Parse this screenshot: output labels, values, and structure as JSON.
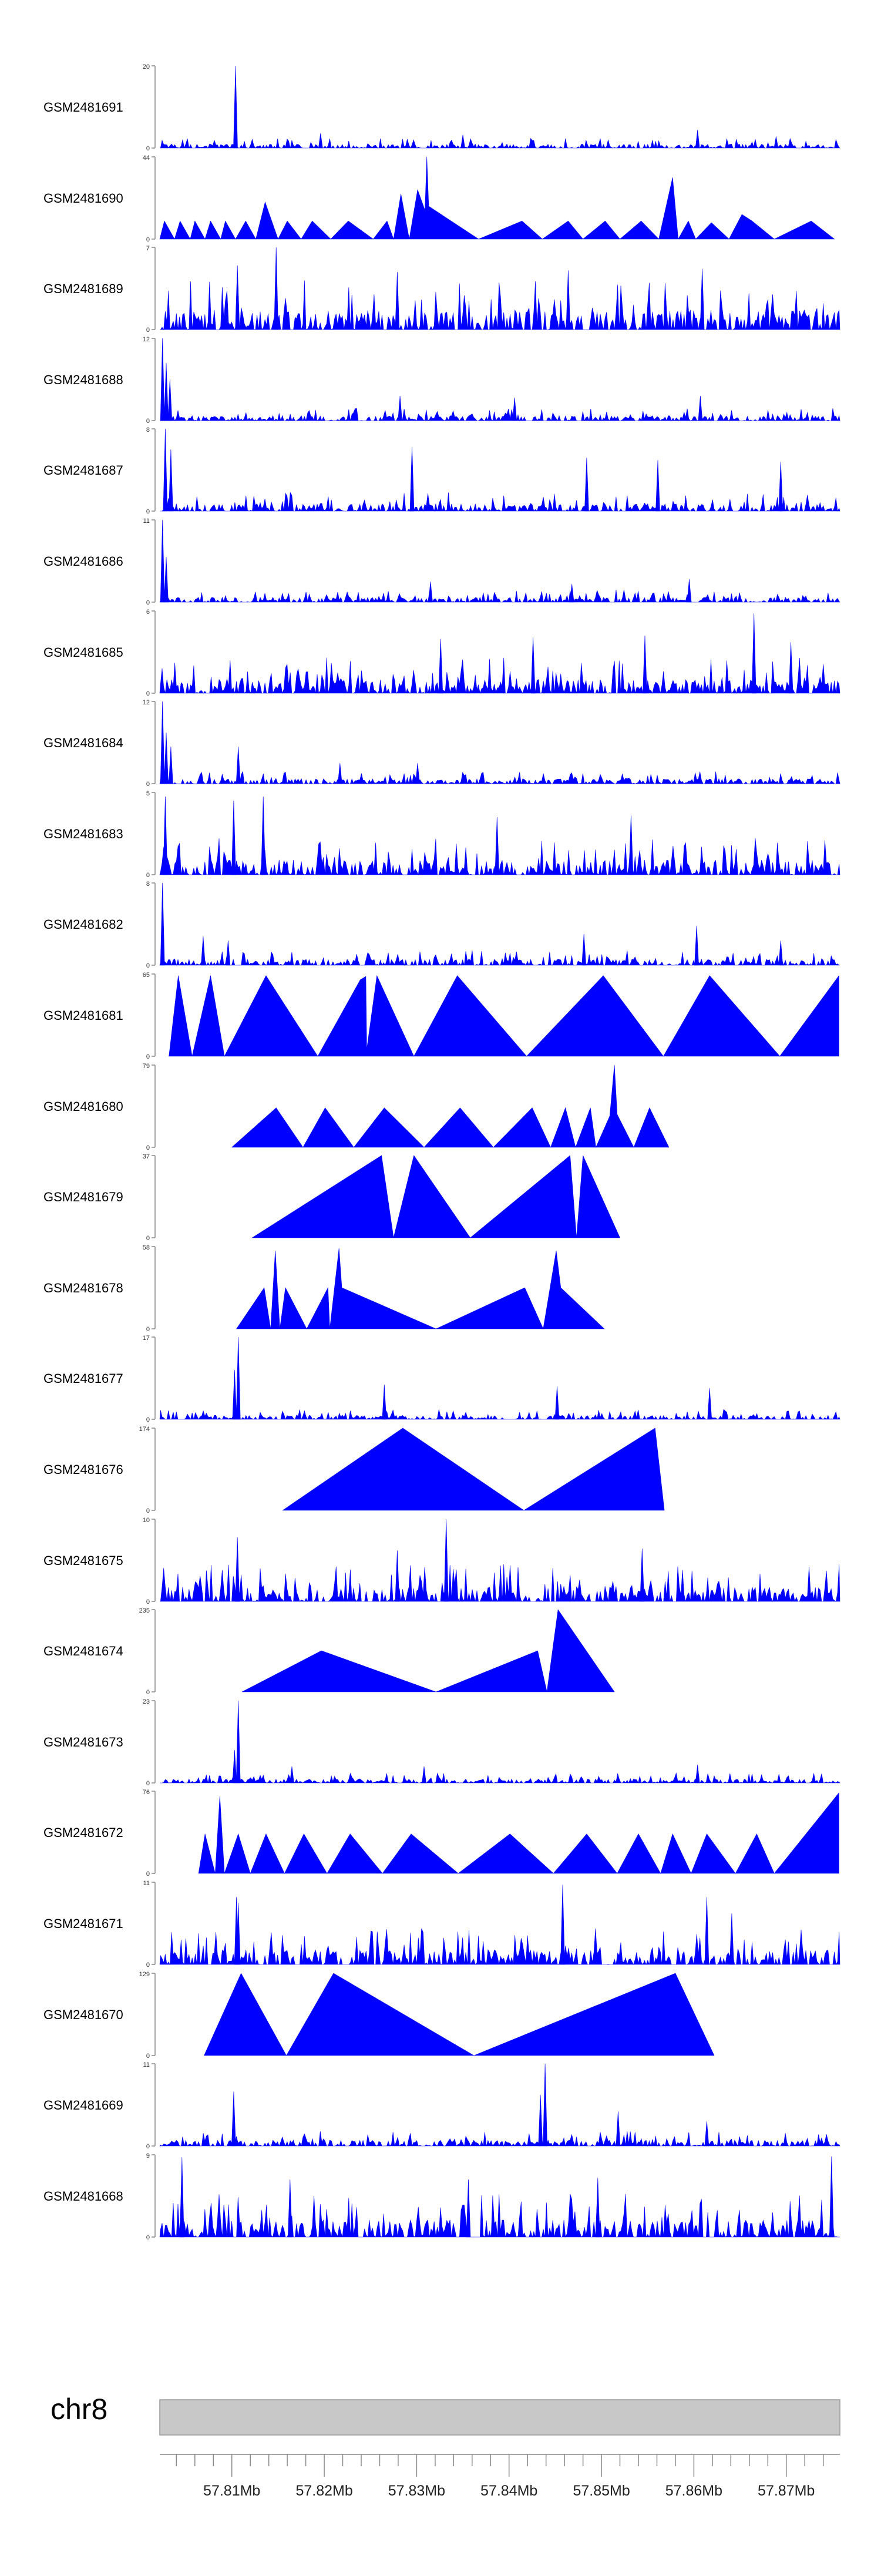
{
  "chart_data": {
    "type": "area",
    "genome": "chr8",
    "xlabel": "",
    "xlim_mb": [
      57.8022,
      57.8758
    ],
    "ticks_mb": [
      57.81,
      57.82,
      57.83,
      57.84,
      57.85,
      57.86,
      57.87
    ],
    "tick_labels": [
      "57.81Mb",
      "57.82Mb",
      "57.83Mb",
      "57.84Mb",
      "57.85Mb",
      "57.86Mb",
      "57.87Mb"
    ],
    "minor_tick_step_mb": 0.002,
    "colors": {
      "fill": "#0000ff",
      "axis": "#888888",
      "ruler": "#c8c8c8"
    },
    "tracks": [
      {
        "name": "GSM2481691",
        "max": 20,
        "min": 0,
        "pattern": "dense",
        "seed": 11,
        "base": 0.08,
        "peaks": [
          [
            57.8104,
            1.0
          ],
          [
            57.8196,
            0.18
          ],
          [
            57.835,
            0.16
          ],
          [
            57.8604,
            0.22
          ],
          [
            57.8689,
            0.14
          ]
        ]
      },
      {
        "name": "GSM2481690",
        "max": 44,
        "min": 0,
        "pattern": "tri",
        "seed": 12,
        "points": [
          [
            57.8022,
            0
          ],
          [
            57.8027,
            0.22
          ],
          [
            57.8038,
            0
          ],
          [
            57.8044,
            0.22
          ],
          [
            57.8055,
            0
          ],
          [
            57.806,
            0.22
          ],
          [
            57.8071,
            0
          ],
          [
            57.8077,
            0.22
          ],
          [
            57.8088,
            0
          ],
          [
            57.8093,
            0.22
          ],
          [
            57.8104,
            0
          ],
          [
            57.8115,
            0.22
          ],
          [
            57.8126,
            0
          ],
          [
            57.8136,
            0.45
          ],
          [
            57.815,
            0
          ],
          [
            57.816,
            0.22
          ],
          [
            57.8175,
            0
          ],
          [
            57.8187,
            0.22
          ],
          [
            57.8207,
            0
          ],
          [
            57.8226,
            0.22
          ],
          [
            57.8253,
            0
          ],
          [
            57.8268,
            0.22
          ],
          [
            57.8275,
            0
          ],
          [
            57.8283,
            0.55
          ],
          [
            57.8292,
            0
          ],
          [
            57.8301,
            0.6
          ],
          [
            57.8309,
            0.35
          ],
          [
            57.8311,
            1.0
          ],
          [
            57.8313,
            0.4
          ],
          [
            57.8367,
            0
          ],
          [
            57.8414,
            0.22
          ],
          [
            57.8436,
            0
          ],
          [
            57.8464,
            0.22
          ],
          [
            57.848,
            0
          ],
          [
            57.8504,
            0.22
          ],
          [
            57.852,
            0
          ],
          [
            57.8543,
            0.22
          ],
          [
            57.8562,
            0
          ],
          [
            57.8577,
            0.75
          ],
          [
            57.8583,
            0
          ],
          [
            57.8594,
            0.22
          ],
          [
            57.8602,
            0
          ],
          [
            57.8619,
            0.2
          ],
          [
            57.8638,
            0
          ],
          [
            57.8652,
            0.3
          ],
          [
            57.8663,
            0.22
          ],
          [
            57.8687,
            0
          ],
          [
            57.8727,
            0.22
          ],
          [
            57.8752,
            0
          ]
        ]
      },
      {
        "name": "GSM2481689",
        "max": 7,
        "min": 0,
        "pattern": "dense",
        "seed": 13,
        "base": 0.4,
        "peaks": [
          [
            57.8148,
            1.0
          ],
          [
            57.8106,
            0.78
          ],
          [
            57.8279,
            0.7
          ],
          [
            57.8464,
            0.72
          ],
          [
            57.8609,
            0.74
          ]
        ]
      },
      {
        "name": "GSM2481688",
        "max": 12,
        "min": 0,
        "pattern": "dense",
        "seed": 14,
        "base": 0.1,
        "peaks": [
          [
            57.8025,
            1.0
          ],
          [
            57.8029,
            0.7
          ],
          [
            57.8033,
            0.5
          ],
          [
            57.8282,
            0.3
          ],
          [
            57.8406,
            0.28
          ],
          [
            57.8607,
            0.3
          ]
        ]
      },
      {
        "name": "GSM2481687",
        "max": 8,
        "min": 0,
        "pattern": "dense",
        "seed": 15,
        "base": 0.15,
        "peaks": [
          [
            57.8028,
            1.0
          ],
          [
            57.8034,
            0.75
          ],
          [
            57.8295,
            0.78
          ],
          [
            57.8484,
            0.65
          ],
          [
            57.8561,
            0.62
          ],
          [
            57.8694,
            0.6
          ]
        ]
      },
      {
        "name": "GSM2481686",
        "max": 11,
        "min": 0,
        "pattern": "dense",
        "seed": 16,
        "base": 0.1,
        "peaks": [
          [
            57.8025,
            1.0
          ],
          [
            57.8029,
            0.55
          ],
          [
            57.8315,
            0.25
          ],
          [
            57.8468,
            0.22
          ],
          [
            57.8595,
            0.28
          ]
        ]
      },
      {
        "name": "GSM2481685",
        "max": 6,
        "min": 0,
        "pattern": "dense",
        "seed": 17,
        "base": 0.3,
        "peaks": [
          [
            57.8665,
            0.97
          ],
          [
            57.8547,
            0.7
          ],
          [
            57.8426,
            0.68
          ],
          [
            57.8326,
            0.66
          ],
          [
            57.8705,
            0.62
          ]
        ]
      },
      {
        "name": "GSM2481684",
        "max": 12,
        "min": 0,
        "pattern": "dense",
        "seed": 18,
        "base": 0.1,
        "peaks": [
          [
            57.8025,
            1.0
          ],
          [
            57.8029,
            0.62
          ],
          [
            57.8034,
            0.45
          ],
          [
            57.8107,
            0.45
          ],
          [
            57.8217,
            0.25
          ],
          [
            57.8301,
            0.25
          ]
        ]
      },
      {
        "name": "GSM2481683",
        "max": 5,
        "min": 0,
        "pattern": "dense",
        "seed": 19,
        "base": 0.3,
        "peaks": [
          [
            57.8028,
            0.95
          ],
          [
            57.8102,
            0.9
          ],
          [
            57.8134,
            0.95
          ],
          [
            57.8387,
            0.7
          ],
          [
            57.8532,
            0.72
          ]
        ]
      },
      {
        "name": "GSM2481682",
        "max": 8,
        "min": 0,
        "pattern": "dense",
        "seed": 20,
        "base": 0.12,
        "peaks": [
          [
            57.8025,
            1.0
          ],
          [
            57.8069,
            0.35
          ],
          [
            57.8096,
            0.3
          ],
          [
            57.8481,
            0.38
          ],
          [
            57.8603,
            0.48
          ],
          [
            57.8694,
            0.3
          ]
        ]
      },
      {
        "name": "GSM2481681",
        "max": 65,
        "min": 0,
        "pattern": "tri",
        "seed": 21,
        "points": [
          [
            57.8032,
            0
          ],
          [
            57.8042,
            0.98
          ],
          [
            57.8057,
            0
          ],
          [
            57.8077,
            0.98
          ],
          [
            57.8092,
            0
          ],
          [
            57.8137,
            0.98
          ],
          [
            57.8193,
            0
          ],
          [
            57.8239,
            0.93
          ],
          [
            57.8245,
            0.97
          ],
          [
            57.8246,
            0.08
          ],
          [
            57.8257,
            0.98
          ],
          [
            57.8297,
            0
          ],
          [
            57.8344,
            0.98
          ],
          [
            57.8419,
            0
          ],
          [
            57.8502,
            0.98
          ],
          [
            57.8567,
            0
          ],
          [
            57.8617,
            0.98
          ],
          [
            57.8693,
            0
          ],
          [
            57.8757,
            0.98
          ],
          [
            57.8757,
            0
          ]
        ]
      },
      {
        "name": "GSM2481680",
        "max": 79,
        "min": 0,
        "pattern": "tri",
        "seed": 22,
        "points": [
          [
            57.81,
            0
          ],
          [
            57.8148,
            0.48
          ],
          [
            57.8177,
            0
          ],
          [
            57.8201,
            0.48
          ],
          [
            57.8232,
            0
          ],
          [
            57.8265,
            0.48
          ],
          [
            57.8308,
            0
          ],
          [
            57.8347,
            0.48
          ],
          [
            57.8383,
            0
          ],
          [
            57.8425,
            0.48
          ],
          [
            57.8445,
            0
          ],
          [
            57.8461,
            0.48
          ],
          [
            57.8472,
            0
          ],
          [
            57.8488,
            0.48
          ],
          [
            57.8494,
            0
          ],
          [
            57.8509,
            0.38
          ],
          [
            57.8514,
            1.0
          ],
          [
            57.8517,
            0.4
          ],
          [
            57.8535,
            0
          ],
          [
            57.8552,
            0.48
          ],
          [
            57.8573,
            0
          ]
        ]
      },
      {
        "name": "GSM2481679",
        "max": 37,
        "min": 0,
        "pattern": "tri",
        "seed": 23,
        "points": [
          [
            57.8122,
            0
          ],
          [
            57.8262,
            1.0
          ],
          [
            57.8275,
            0
          ],
          [
            57.8297,
            1.0
          ],
          [
            57.8358,
            0
          ],
          [
            57.8466,
            1.0
          ],
          [
            57.8473,
            0
          ],
          [
            57.848,
            1.0
          ],
          [
            57.852,
            0
          ]
        ]
      },
      {
        "name": "GSM2481678",
        "max": 58,
        "min": 0,
        "pattern": "tri",
        "seed": 24,
        "points": [
          [
            57.8105,
            0
          ],
          [
            57.8135,
            0.5
          ],
          [
            57.8142,
            0
          ],
          [
            57.8147,
            0.95
          ],
          [
            57.8152,
            0
          ],
          [
            57.8158,
            0.5
          ],
          [
            57.8181,
            0
          ],
          [
            57.8204,
            0.5
          ],
          [
            57.8206,
            0
          ],
          [
            57.8216,
            0.98
          ],
          [
            57.8219,
            0.5
          ],
          [
            57.8321,
            0
          ],
          [
            57.8417,
            0.5
          ],
          [
            57.8437,
            0
          ],
          [
            57.8451,
            0.95
          ],
          [
            57.8456,
            0.5
          ],
          [
            57.8503,
            0
          ]
        ]
      },
      {
        "name": "GSM2481677",
        "max": 17,
        "min": 0,
        "pattern": "dense",
        "seed": 25,
        "base": 0.08,
        "peaks": [
          [
            57.8107,
            1.0
          ],
          [
            57.8103,
            0.6
          ],
          [
            57.8265,
            0.42
          ],
          [
            57.8452,
            0.4
          ],
          [
            57.8617,
            0.38
          ]
        ]
      },
      {
        "name": "GSM2481676",
        "max": 174,
        "min": 0,
        "pattern": "tri",
        "seed": 26,
        "points": [
          [
            57.8155,
            0
          ],
          [
            57.8285,
            1.0
          ],
          [
            57.8416,
            0
          ],
          [
            57.8558,
            1.0
          ],
          [
            57.8568,
            0
          ]
        ]
      },
      {
        "name": "GSM2481675",
        "max": 10,
        "min": 0,
        "pattern": "dense",
        "seed": 27,
        "base": 0.3,
        "peaks": [
          [
            57.8106,
            0.78
          ],
          [
            57.8106,
            0.62
          ],
          [
            57.8332,
            1.0
          ],
          [
            57.8279,
            0.62
          ],
          [
            57.8544,
            0.64
          ]
        ]
      },
      {
        "name": "GSM2481674",
        "max": 235,
        "min": 0,
        "pattern": "tri",
        "seed": 28,
        "points": [
          [
            57.8111,
            0
          ],
          [
            57.8197,
            0.5
          ],
          [
            57.8321,
            0
          ],
          [
            57.8431,
            0.5
          ],
          [
            57.8441,
            0
          ],
          [
            57.8453,
            1.0
          ],
          [
            57.8514,
            0
          ]
        ]
      },
      {
        "name": "GSM2481673",
        "max": 23,
        "min": 0,
        "pattern": "dense",
        "seed": 29,
        "base": 0.08,
        "peaks": [
          [
            57.8107,
            1.0
          ],
          [
            57.8103,
            0.4
          ],
          [
            57.8165,
            0.2
          ],
          [
            57.8308,
            0.2
          ],
          [
            57.8604,
            0.22
          ]
        ]
      },
      {
        "name": "GSM2481672",
        "max": 76,
        "min": 0,
        "pattern": "tri",
        "seed": 30,
        "points": [
          [
            57.8064,
            0
          ],
          [
            57.8071,
            0.48
          ],
          [
            57.8082,
            0
          ],
          [
            57.8087,
            0.94
          ],
          [
            57.8092,
            0
          ],
          [
            57.8107,
            0.48
          ],
          [
            57.812,
            0
          ],
          [
            57.8137,
            0.48
          ],
          [
            57.8157,
            0
          ],
          [
            57.8178,
            0.48
          ],
          [
            57.8203,
            0
          ],
          [
            57.8228,
            0.48
          ],
          [
            57.8263,
            0
          ],
          [
            57.8294,
            0.48
          ],
          [
            57.8345,
            0
          ],
          [
            57.8401,
            0.48
          ],
          [
            57.8448,
            0
          ],
          [
            57.8484,
            0.48
          ],
          [
            57.8517,
            0
          ],
          [
            57.854,
            0.48
          ],
          [
            57.8564,
            0
          ],
          [
            57.8577,
            0.48
          ],
          [
            57.8597,
            0
          ],
          [
            57.8614,
            0.48
          ],
          [
            57.8645,
            0
          ],
          [
            57.8668,
            0.48
          ],
          [
            57.8687,
            0
          ],
          [
            57.8757,
            0.98
          ],
          [
            57.8757,
            0
          ]
        ]
      },
      {
        "name": "GSM2481671",
        "max": 11,
        "min": 0,
        "pattern": "dense",
        "seed": 31,
        "base": 0.3,
        "peaks": [
          [
            57.8105,
            0.82
          ],
          [
            57.8107,
            0.75
          ],
          [
            57.8458,
            0.97
          ],
          [
            57.8614,
            0.82
          ],
          [
            57.8641,
            0.62
          ]
        ]
      },
      {
        "name": "GSM2481670",
        "max": 129,
        "min": 0,
        "pattern": "tri",
        "seed": 32,
        "points": [
          [
            57.807,
            0
          ],
          [
            57.811,
            1.0
          ],
          [
            57.8159,
            0
          ],
          [
            57.821,
            1.0
          ],
          [
            57.8362,
            0
          ],
          [
            57.858,
            1.0
          ],
          [
            57.8622,
            0
          ]
        ]
      },
      {
        "name": "GSM2481669",
        "max": 11,
        "min": 0,
        "pattern": "dense",
        "seed": 33,
        "base": 0.12,
        "peaks": [
          [
            57.8439,
            1.0
          ],
          [
            57.8102,
            0.66
          ],
          [
            57.8434,
            0.62
          ],
          [
            57.8518,
            0.42
          ],
          [
            57.8614,
            0.3
          ]
        ]
      },
      {
        "name": "GSM2481668",
        "max": 9,
        "min": 0,
        "pattern": "dense",
        "seed": 34,
        "base": 0.35,
        "peaks": [
          [
            57.8046,
            0.97
          ],
          [
            57.8163,
            0.7
          ],
          [
            57.8356,
            0.7
          ],
          [
            57.8496,
            0.72
          ],
          [
            57.8749,
            0.98
          ]
        ]
      }
    ]
  }
}
